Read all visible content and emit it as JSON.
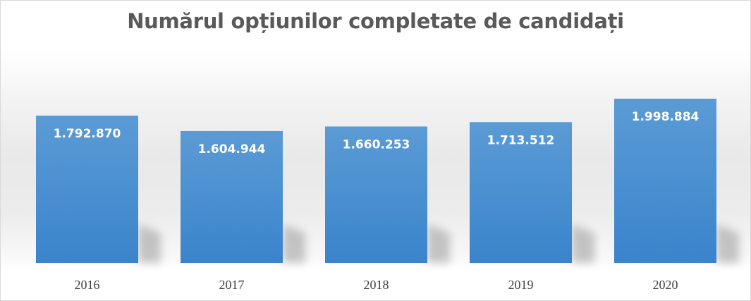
{
  "chart_data": {
    "type": "bar",
    "title": "Numărul opțiunilor completate de candidați",
    "categories": [
      "2016",
      "2017",
      "2018",
      "2019",
      "2020"
    ],
    "values": [
      1792870,
      1604944,
      1660253,
      1713512,
      1998884
    ],
    "data_labels": [
      "1.792.870",
      "1.604.944",
      "1.660.253",
      "1.713.512",
      "1.998.884"
    ],
    "xlabel": "",
    "ylabel": "",
    "grid": false,
    "legend": "none",
    "bar_color_top": "#5b9bd5",
    "bar_color_bottom": "#3a84cc",
    "label_color": "#ffffff",
    "tick_color": "#404040"
  }
}
